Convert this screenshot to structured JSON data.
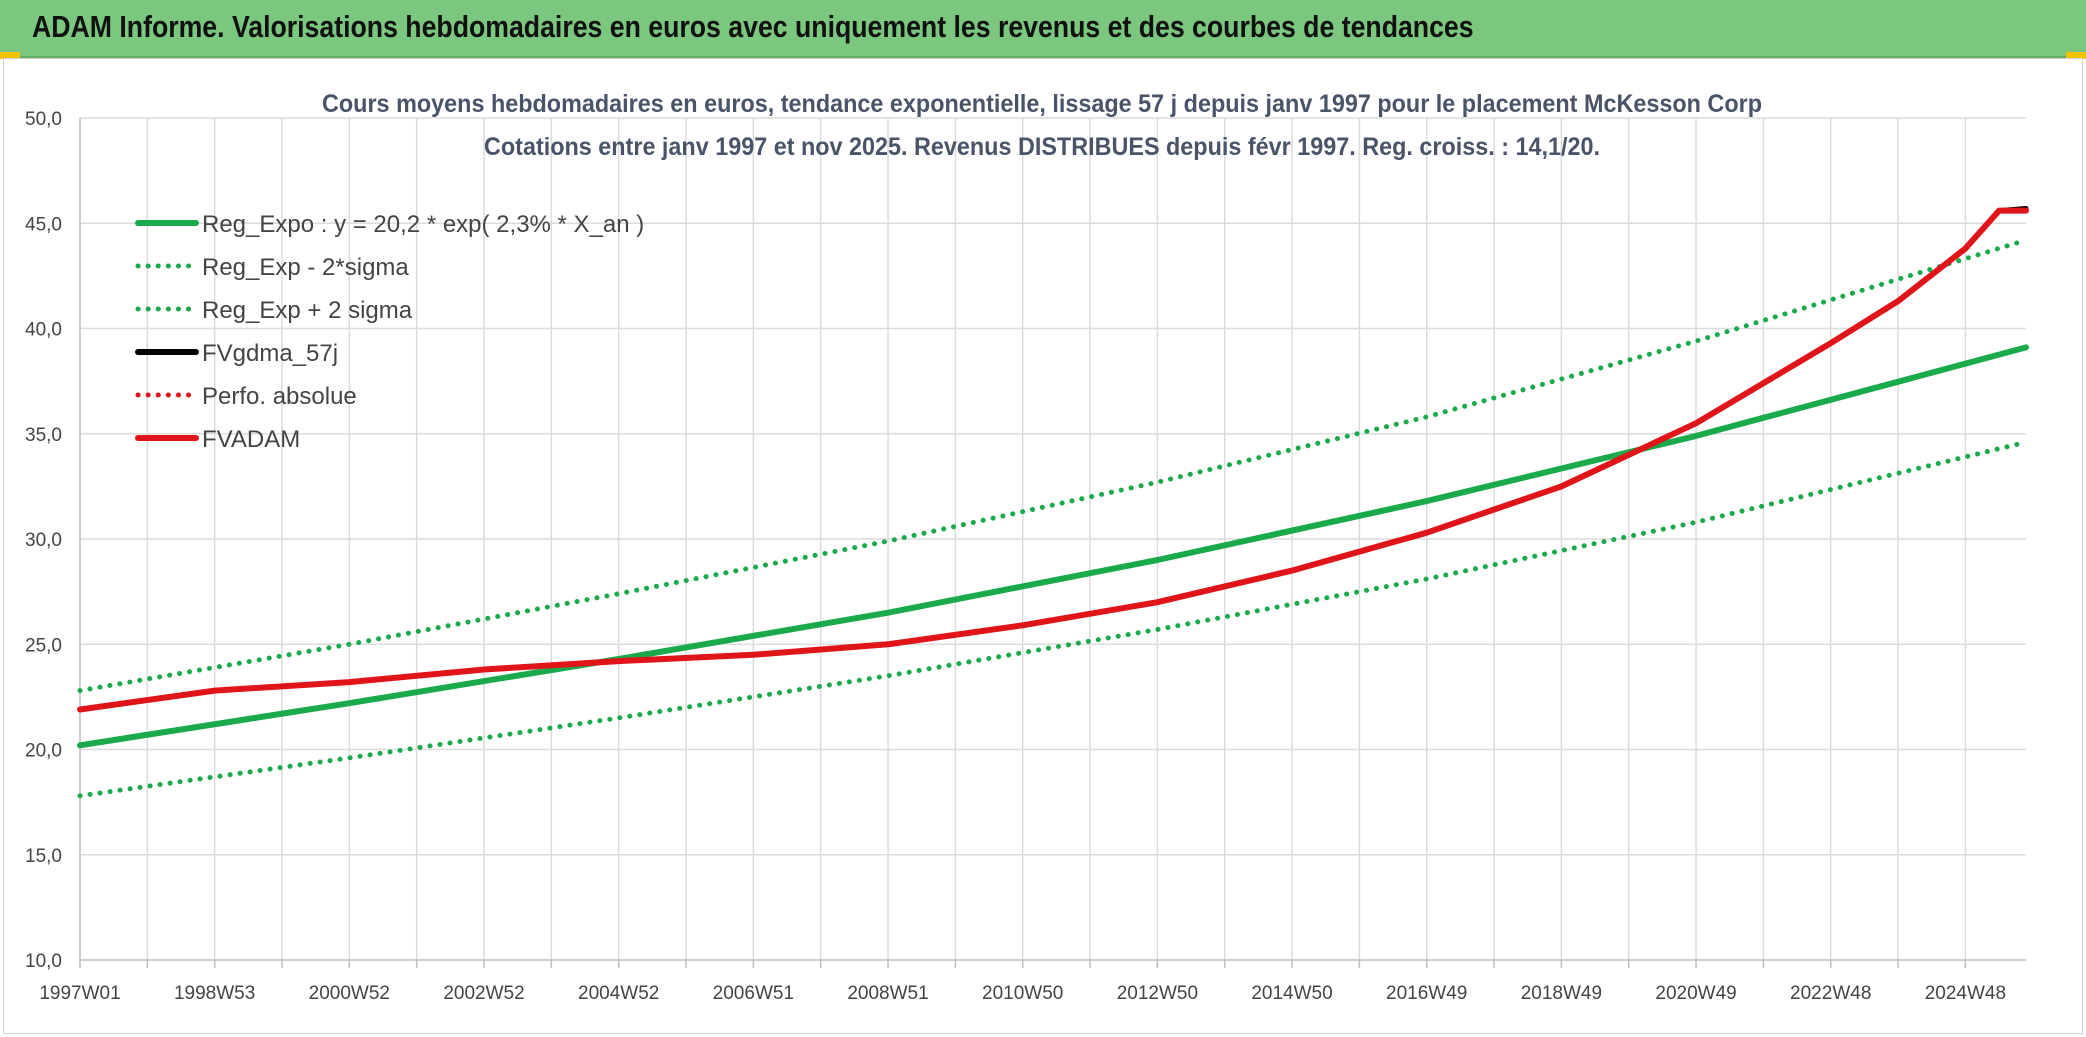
{
  "banner": {
    "title": "ADAM Informe. Valorisations hebdomadaires en euros avec uniquement les revenus et des courbes de tendances",
    "bg_color": "#7cc77f"
  },
  "chart_data": {
    "type": "line",
    "title": [
      "Cours moyens hebdomadaires en euros, tendance exponentielle, lissage 57 j depuis janv 1997 pour le placement McKesson Corp",
      "Cotations entre janv 1997 et nov 2025. Revenus DISTRIBUES depuis févr 1997. Reg. croiss. : 14,1/20."
    ],
    "xlabel": "",
    "ylabel": "",
    "ylim": [
      10,
      50
    ],
    "y_ticks": [
      "10,0",
      "15,0",
      "20,0",
      "25,0",
      "30,0",
      "35,0",
      "40,0",
      "45,0",
      "50,0"
    ],
    "xlim": [
      1997.0,
      2025.9
    ],
    "x_ticks": [
      {
        "label": "1997W01",
        "pos": 1997.0
      },
      {
        "label": "1998W53",
        "pos": 1999.0
      },
      {
        "label": "2000W52",
        "pos": 2001.0
      },
      {
        "label": "2002W52",
        "pos": 2003.0
      },
      {
        "label": "2004W52",
        "pos": 2005.0
      },
      {
        "label": "2006W51",
        "pos": 2007.0
      },
      {
        "label": "2008W51",
        "pos": 2009.0
      },
      {
        "label": "2010W50",
        "pos": 2011.0
      },
      {
        "label": "2012W50",
        "pos": 2013.0
      },
      {
        "label": "2014W50",
        "pos": 2015.0
      },
      {
        "label": "2016W49",
        "pos": 2017.0
      },
      {
        "label": "2018W49",
        "pos": 2019.0
      },
      {
        "label": "2020W49",
        "pos": 2021.0
      },
      {
        "label": "2022W48",
        "pos": 2023.0
      },
      {
        "label": "2024W48",
        "pos": 2025.0
      }
    ],
    "grid": true,
    "legend_position": "top-left",
    "series": [
      {
        "name": "Reg_Expo : y = 20,2 * exp( 2,3% *  X_an )",
        "color": "#1aaa4b",
        "style": "solid",
        "x": [
          1997.0,
          2001.0,
          2005.0,
          2009.0,
          2013.0,
          2017.0,
          2021.0,
          2025.9
        ],
        "values": [
          20.2,
          22.2,
          24.3,
          26.5,
          29.0,
          31.8,
          34.9,
          39.1
        ]
      },
      {
        "name": "Reg_Exp - 2*sigma",
        "color": "#1aaa4b",
        "style": "dotted",
        "x": [
          1997.0,
          2001.0,
          2005.0,
          2009.0,
          2013.0,
          2017.0,
          2021.0,
          2025.9
        ],
        "values": [
          17.8,
          19.6,
          21.5,
          23.5,
          25.7,
          28.1,
          30.8,
          34.6
        ]
      },
      {
        "name": "Reg_Exp + 2 sigma",
        "color": "#1aaa4b",
        "style": "dotted",
        "x": [
          1997.0,
          2001.0,
          2005.0,
          2009.0,
          2013.0,
          2017.0,
          2021.0,
          2025.9
        ],
        "values": [
          22.8,
          25.0,
          27.4,
          29.9,
          32.7,
          35.8,
          39.4,
          44.2
        ]
      },
      {
        "name": "FVgdma_57j",
        "color": "#000000",
        "style": "solid",
        "x": [
          1997.0,
          1999.0,
          2001.0,
          2003.0,
          2005.0,
          2007.0,
          2009.0,
          2011.0,
          2013.0,
          2015.0,
          2017.0,
          2019.0,
          2021.0,
          2023.0,
          2024.0,
          2025.0,
          2025.5,
          2025.9
        ],
        "values": [
          21.9,
          22.8,
          23.2,
          23.8,
          24.2,
          24.5,
          25.0,
          25.9,
          27.0,
          28.5,
          30.3,
          32.5,
          35.5,
          39.3,
          41.3,
          43.8,
          45.6,
          45.7
        ]
      },
      {
        "name": "Perfo. absolue",
        "color": "#e0151a",
        "style": "dotted",
        "x": [
          1997.0,
          1999.0,
          2001.0,
          2003.0,
          2005.0,
          2007.0,
          2009.0,
          2011.0,
          2013.0,
          2015.0,
          2017.0,
          2019.0,
          2021.0,
          2023.0,
          2024.0,
          2025.0,
          2025.5,
          2025.9
        ],
        "values": [
          21.9,
          22.8,
          23.2,
          23.8,
          24.2,
          24.5,
          25.0,
          25.9,
          27.0,
          28.5,
          30.3,
          32.5,
          35.5,
          39.3,
          41.3,
          43.8,
          45.6,
          45.6
        ]
      },
      {
        "name": "FVADAM",
        "color": "#e0151a",
        "style": "solid",
        "x": [
          1997.0,
          1999.0,
          2001.0,
          2003.0,
          2005.0,
          2007.0,
          2009.0,
          2011.0,
          2013.0,
          2015.0,
          2017.0,
          2019.0,
          2021.0,
          2023.0,
          2024.0,
          2025.0,
          2025.5,
          2025.9
        ],
        "values": [
          21.9,
          22.8,
          23.2,
          23.8,
          24.2,
          24.5,
          25.0,
          25.9,
          27.0,
          28.5,
          30.3,
          32.5,
          35.5,
          39.3,
          41.3,
          43.8,
          45.6,
          45.6
        ]
      }
    ]
  }
}
